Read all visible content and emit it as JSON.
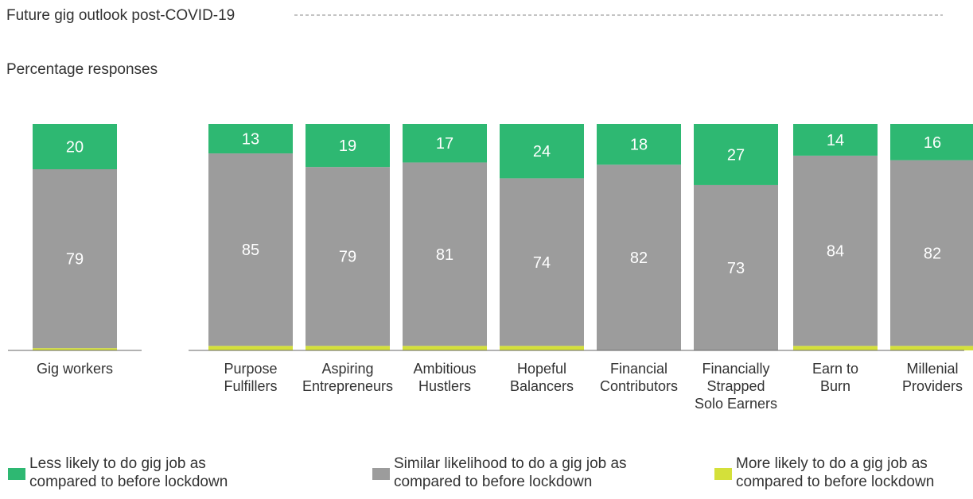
{
  "chart_data": {
    "type": "bar",
    "stacked": true,
    "title": "Future gig outlook post-COVID-19",
    "subtitle": "Percentage responses",
    "ylim": [
      0,
      100
    ],
    "grid": false,
    "legend_position": "bottom",
    "categories": [
      [
        "Gig workers"
      ],
      [
        "Purpose",
        "Fulfillers"
      ],
      [
        "Aspiring",
        "Entrepreneurs"
      ],
      [
        "Ambitious",
        "Hustlers"
      ],
      [
        "Hopeful",
        "Balancers"
      ],
      [
        "Financial",
        "Contributors"
      ],
      [
        "Financially",
        "Strapped",
        "Solo Earners"
      ],
      [
        "Earn to",
        "Burn"
      ],
      [
        "Millenial",
        "Providers"
      ]
    ],
    "series": [
      {
        "name": "More likely to do a gig job as compared to before lockdown",
        "legend_lines": [
          "More likely to do a gig job as",
          "compared to before lockdown"
        ],
        "color": "#d4e03a",
        "values": [
          1,
          2,
          2,
          2,
          2,
          0,
          0,
          2,
          2
        ]
      },
      {
        "name": "Similar likelihood to do a gig job as compared to before lockdown",
        "legend_lines": [
          "Similar likelihood to do a gig job as",
          "compared to before lockdown"
        ],
        "color": "#9c9c9c",
        "values": [
          79,
          85,
          79,
          81,
          74,
          82,
          73,
          84,
          82
        ]
      },
      {
        "name": "Less likely to do gig job as compared to before lockdown",
        "legend_lines": [
          "Less likely to do gig job as",
          "compared to before lockdown"
        ],
        "color": "#2eb872",
        "values": [
          20,
          13,
          19,
          17,
          24,
          18,
          27,
          14,
          16
        ]
      }
    ],
    "labeled_series": [
      1,
      2
    ]
  }
}
